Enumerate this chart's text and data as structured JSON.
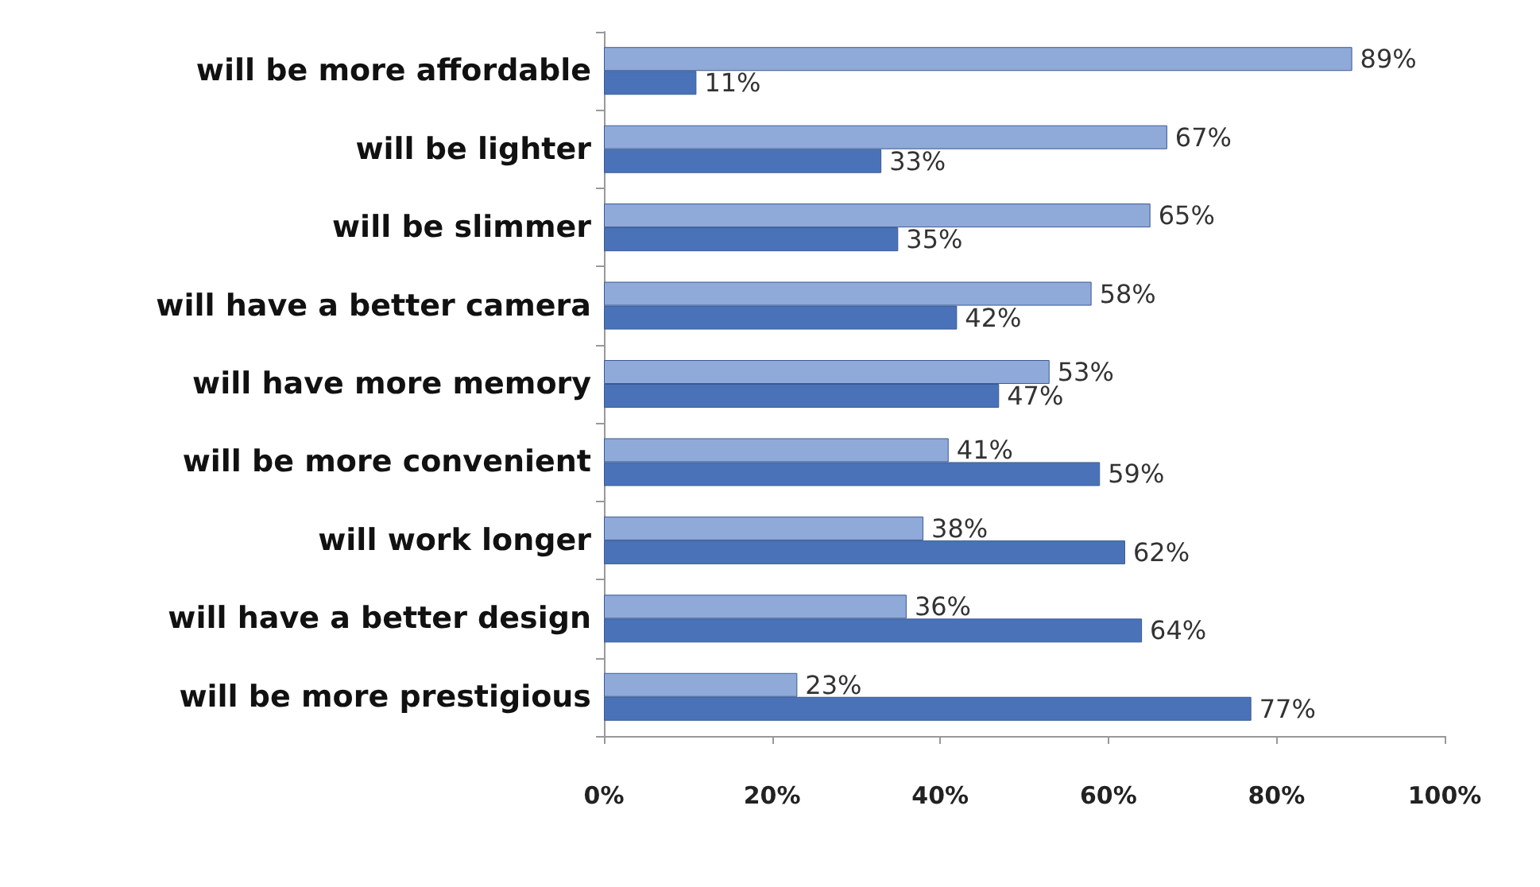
{
  "chart_data": {
    "type": "bar",
    "orientation": "horizontal",
    "categories": [
      "will be more affordable",
      "will be lighter",
      "will be slimmer",
      "will have a better camera",
      "will have more memory",
      "will be more convenient",
      "will work longer",
      "will have a better design",
      "will be more prestigious"
    ],
    "series": [
      {
        "color": "#8fa9d9",
        "values": [
          89,
          67,
          65,
          58,
          53,
          41,
          38,
          36,
          23
        ],
        "value_labels": [
          "89%",
          "67%",
          "65%",
          "58%",
          "53%",
          "41%",
          "38%",
          "36%",
          "23%"
        ]
      },
      {
        "color": "#4a72b8",
        "values": [
          11,
          33,
          35,
          42,
          47,
          59,
          62,
          64,
          77
        ],
        "value_labels": [
          "11%",
          "33%",
          "35%",
          "42%",
          "47%",
          "59%",
          "62%",
          "64%",
          "77%"
        ]
      }
    ],
    "xlim": [
      0,
      100
    ],
    "xticks": [
      {
        "value": 0,
        "label": "0%"
      },
      {
        "value": 20,
        "label": "20%"
      },
      {
        "value": 40,
        "label": "40%"
      },
      {
        "value": 60,
        "label": "60%"
      },
      {
        "value": 80,
        "label": "80%"
      },
      {
        "value": 100,
        "label": "100%"
      }
    ],
    "grid": false
  }
}
